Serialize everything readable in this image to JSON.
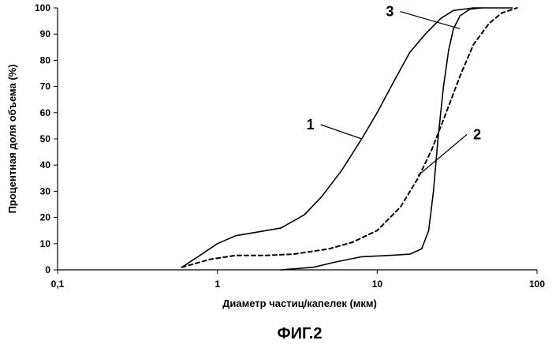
{
  "chart_data": {
    "type": "line",
    "xscale": "log",
    "xlim": [
      0.1,
      100
    ],
    "ylim": [
      0,
      100
    ],
    "xticks": [
      0.1,
      1,
      10,
      100
    ],
    "xtick_labels": [
      "0,1",
      "1",
      "10",
      "100"
    ],
    "yticks": [
      0,
      10,
      20,
      30,
      40,
      50,
      60,
      70,
      80,
      90,
      100
    ],
    "ytick_labels": [
      "0",
      "10",
      "20",
      "30",
      "40",
      "50",
      "60",
      "70",
      "80",
      "90",
      "100"
    ],
    "xlabel": "Диаметр частиц/капелек (мкм)",
    "ylabel": "Процентная доля объема (%)",
    "caption": "ФИГ.2",
    "grid": false,
    "series": [
      {
        "name": "1",
        "style": "solid",
        "points": [
          [
            0.6,
            1
          ],
          [
            0.8,
            6
          ],
          [
            1.0,
            10
          ],
          [
            1.3,
            13
          ],
          [
            1.8,
            14.5
          ],
          [
            2.5,
            16
          ],
          [
            3.5,
            21
          ],
          [
            4.5,
            28
          ],
          [
            6,
            38
          ],
          [
            8,
            50
          ],
          [
            10,
            60
          ],
          [
            13,
            73
          ],
          [
            16,
            83
          ],
          [
            20,
            90
          ],
          [
            25,
            96
          ],
          [
            30,
            99
          ],
          [
            40,
            100
          ],
          [
            45,
            100
          ]
        ]
      },
      {
        "name": "2",
        "style": "dashed",
        "points": [
          [
            0.6,
            1
          ],
          [
            0.9,
            4
          ],
          [
            1.3,
            5.5
          ],
          [
            2,
            5.5
          ],
          [
            3,
            6
          ],
          [
            5,
            8
          ],
          [
            7,
            10.5
          ],
          [
            10,
            15
          ],
          [
            14,
            24
          ],
          [
            18,
            35
          ],
          [
            22,
            46
          ],
          [
            27,
            60
          ],
          [
            33,
            74
          ],
          [
            40,
            86
          ],
          [
            50,
            94
          ],
          [
            60,
            98
          ],
          [
            75,
            100
          ]
        ]
      },
      {
        "name": "3",
        "style": "solid",
        "points": [
          [
            2.5,
            0
          ],
          [
            4,
            1
          ],
          [
            5.5,
            3
          ],
          [
            8,
            5
          ],
          [
            12,
            5.5
          ],
          [
            16,
            6
          ],
          [
            19,
            8
          ],
          [
            21,
            15
          ],
          [
            22.5,
            30
          ],
          [
            24,
            50
          ],
          [
            26,
            70
          ],
          [
            28,
            84
          ],
          [
            30,
            92
          ],
          [
            33,
            97
          ],
          [
            38,
            99.5
          ],
          [
            45,
            100
          ],
          [
            70,
            100
          ]
        ]
      }
    ],
    "callouts": [
      {
        "label": "1",
        "target": [
          8,
          50
        ]
      },
      {
        "label": "2",
        "target": [
          18,
          36
        ]
      },
      {
        "label": "3",
        "target": [
          33,
          92
        ]
      }
    ]
  }
}
